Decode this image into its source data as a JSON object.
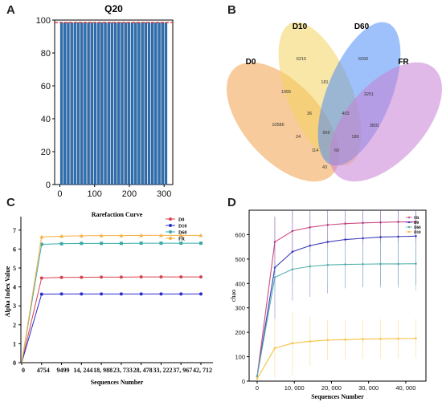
{
  "panels": {
    "a": {
      "letter": "A"
    },
    "b": {
      "letter": "B"
    },
    "c": {
      "letter": "C"
    },
    "d": {
      "letter": "D"
    }
  },
  "chart_data": [
    {
      "id": "A",
      "type": "bar",
      "title": "Q20",
      "xlabel": "",
      "ylabel": "",
      "bar_count": 32,
      "values": [
        98.5,
        98.5,
        98.5,
        98.5,
        98.5,
        98.5,
        98.5,
        98.5,
        98.5,
        98.5,
        98.5,
        98.5,
        98.5,
        98.5,
        98.5,
        98.5,
        98.5,
        98.5,
        98.5,
        98.5,
        98.5,
        98.5,
        98.5,
        98.5,
        98.5,
        98.5,
        98.5,
        98.5,
        98.5,
        98.5,
        98.5,
        98.5
      ],
      "xlim": [
        -15,
        325
      ],
      "ylim": [
        0,
        100
      ],
      "xticks": [
        "0",
        "100",
        "200",
        "300"
      ],
      "yticks": [
        "0",
        "20",
        "40",
        "60",
        "80",
        "100"
      ],
      "bar_color": "#2f6fb0",
      "reference_line": 98.5,
      "reference_color": "#d9302c"
    },
    {
      "id": "B",
      "type": "venn",
      "sets": [
        {
          "name": "D0",
          "color": "#f0a04b"
        },
        {
          "name": "D10",
          "color": "#f4d35e"
        },
        {
          "name": "D60",
          "color": "#4f8ef7"
        },
        {
          "name": "FR",
          "color": "#c97fd6"
        }
      ],
      "region_values": [
        "6215",
        "6090",
        "1955",
        "181",
        "3251",
        "10586",
        "36",
        "403",
        "3801",
        "24",
        "969",
        "186",
        "114",
        "60",
        "43"
      ]
    },
    {
      "id": "C",
      "type": "line",
      "title": "Rarefaction Curve",
      "xlabel": "Sequences Number",
      "ylabel": "Alpha Index Value",
      "x": [
        0,
        4754,
        9499,
        14244,
        18988,
        23733,
        28478,
        33222,
        37967,
        42712
      ],
      "xtick_labels": [
        "0",
        "4754",
        "9499",
        "14, 244",
        "18, 988",
        "23, 733",
        "28, 478",
        "33, 222",
        "37, 967",
        "42, 712"
      ],
      "ylim": [
        0,
        7.5
      ],
      "yticks": [
        "0",
        "1",
        "2",
        "3",
        "4",
        "5",
        "6",
        "7"
      ],
      "series": [
        {
          "name": "D0",
          "color": "#d8434f",
          "values": [
            0,
            4.47,
            4.5,
            4.51,
            4.52,
            4.52,
            4.53,
            4.53,
            4.53,
            4.53
          ]
        },
        {
          "name": "D10",
          "color": "#2c2ccf",
          "values": [
            0,
            3.62,
            3.63,
            3.63,
            3.63,
            3.63,
            3.63,
            3.63,
            3.63,
            3.63
          ]
        },
        {
          "name": "D60",
          "color": "#3aaaa8",
          "values": [
            0,
            6.25,
            6.28,
            6.3,
            6.3,
            6.3,
            6.31,
            6.31,
            6.31,
            6.31
          ]
        },
        {
          "name": "FR",
          "color": "#f5b041",
          "values": [
            0,
            6.64,
            6.68,
            6.7,
            6.71,
            6.71,
            6.72,
            6.72,
            6.72,
            6.72
          ]
        }
      ],
      "legend_position": "top-right"
    },
    {
      "id": "D",
      "type": "line",
      "title": "",
      "xlabel": "Sequences Number",
      "ylabel": "chao",
      "x": [
        0,
        4754,
        9499,
        14244,
        18988,
        23733,
        28478,
        33222,
        37967,
        42712
      ],
      "xticks": [
        0,
        10000,
        20000,
        30000,
        40000
      ],
      "xtick_labels": [
        "0",
        "10, 000",
        "20, 000",
        "30, 000",
        "40, 000"
      ],
      "ylim": [
        0,
        700
      ],
      "yticks": [
        "0",
        "100",
        "200",
        "300",
        "400",
        "500",
        "600"
      ],
      "series": [
        {
          "name": "FR",
          "color": "#cc4a7f",
          "values": [
            20,
            570,
            615,
            630,
            640,
            645,
            648,
            650,
            652,
            652
          ],
          "err": [
            0,
            100,
            90,
            100,
            95,
            90,
            90,
            85,
            85,
            85
          ]
        },
        {
          "name": "D0",
          "color": "#3a3ab8",
          "values": [
            20,
            465,
            530,
            555,
            570,
            580,
            585,
            590,
            592,
            594
          ],
          "err": [
            0,
            210,
            200,
            210,
            210,
            200,
            200,
            200,
            200,
            200
          ]
        },
        {
          "name": "D60",
          "color": "#55b0ad",
          "values": [
            20,
            425,
            458,
            470,
            476,
            478,
            479,
            480,
            480,
            481
          ],
          "err": [
            0,
            60,
            55,
            70,
            80,
            90,
            95,
            100,
            100,
            110
          ]
        },
        {
          "name": "D10",
          "color": "#f5c242",
          "values": [
            10,
            135,
            155,
            163,
            168,
            170,
            172,
            173,
            174,
            175
          ],
          "err": [
            0,
            120,
            130,
            100,
            80,
            80,
            80,
            80,
            80,
            80
          ]
        }
      ],
      "legend_position": "top-right"
    }
  ]
}
